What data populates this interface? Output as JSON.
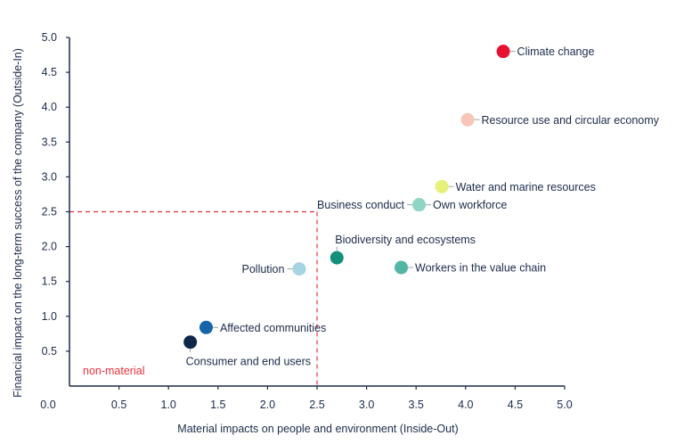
{
  "chart_data": {
    "type": "scatter",
    "xlabel": "Material impacts on people and environment (Inside-Out)",
    "ylabel": "Financial impact on the long-term success of the company (Outside-In)",
    "xlim": [
      0,
      5
    ],
    "ylim": [
      0,
      5
    ],
    "x_ticks": [
      "0.0",
      "0.5",
      "1.0",
      "1.5",
      "2.0",
      "2.5",
      "3.0",
      "3.5",
      "4.0",
      "4.5",
      "5.0"
    ],
    "y_ticks": [
      "0.5",
      "1.0",
      "1.5",
      "2.0",
      "2.5",
      "3.0",
      "3.5",
      "4.0",
      "4.5",
      "5.0"
    ],
    "threshold": {
      "x": 2.5,
      "y": 2.5,
      "label": "non-material",
      "color": "#e8323c"
    },
    "points": [
      {
        "label": "Climate change",
        "x": 4.38,
        "y": 4.8,
        "color": "#e8102f",
        "label_pos": "right"
      },
      {
        "label": "Resource use and circular economy",
        "x": 4.02,
        "y": 3.82,
        "color": "#f7c6b8",
        "label_pos": "right"
      },
      {
        "label": "Water and marine resources",
        "x": 3.76,
        "y": 2.86,
        "color": "#e6f07a",
        "label_pos": "right"
      },
      {
        "label": "Business conduct",
        "x": 3.53,
        "y": 2.6,
        "color": "#8fd5c6",
        "label_pos": "left"
      },
      {
        "label": "Own workforce",
        "x": 3.53,
        "y": 2.6,
        "color": "#8fd5c6",
        "label_pos": "right"
      },
      {
        "label": "Biodiversity and ecosystems",
        "x": 2.7,
        "y": 1.84,
        "color": "#12907a",
        "label_pos": "above"
      },
      {
        "label": "Workers in the value chain",
        "x": 3.35,
        "y": 1.7,
        "color": "#52b5a5",
        "label_pos": "right"
      },
      {
        "label": "Pollution",
        "x": 2.32,
        "y": 1.68,
        "color": "#a6d4e3",
        "label_pos": "left"
      },
      {
        "label": "Affected communities",
        "x": 1.38,
        "y": 0.84,
        "color": "#1565a8",
        "label_pos": "right"
      },
      {
        "label": "Consumer and end users",
        "x": 1.22,
        "y": 0.63,
        "color": "#0f2748",
        "label_pos": "below"
      }
    ]
  }
}
